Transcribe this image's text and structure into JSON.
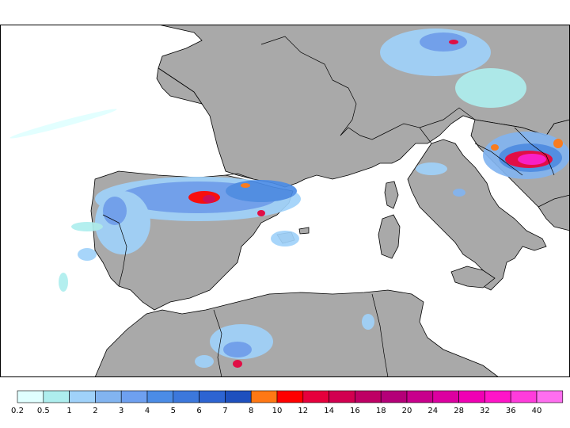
{
  "map": {
    "colors": {
      "land": "#a9a9a9",
      "sea": "#ffffff",
      "border": "#000000",
      "frame": "#000000"
    }
  },
  "legend": {
    "labels": [
      "0.2",
      "0.5",
      "1",
      "2",
      "3",
      "4",
      "5",
      "6",
      "7",
      "8",
      "10",
      "12",
      "14",
      "16",
      "18",
      "20",
      "24",
      "28",
      "32",
      "36",
      "40"
    ],
    "colors": [
      "#e0ffff",
      "#aeeeee",
      "#a0d2fa",
      "#82b4f0",
      "#6ea0f0",
      "#4b8ce6",
      "#3c78dc",
      "#2d64d2",
      "#1e50be",
      "#ff7814",
      "#ff0000",
      "#e6003c",
      "#d20050",
      "#be0064",
      "#b40078",
      "#c8008c",
      "#dc00a0",
      "#f000b4",
      "#ff14c8",
      "#ff3cdc",
      "#ff6ef0"
    ]
  }
}
